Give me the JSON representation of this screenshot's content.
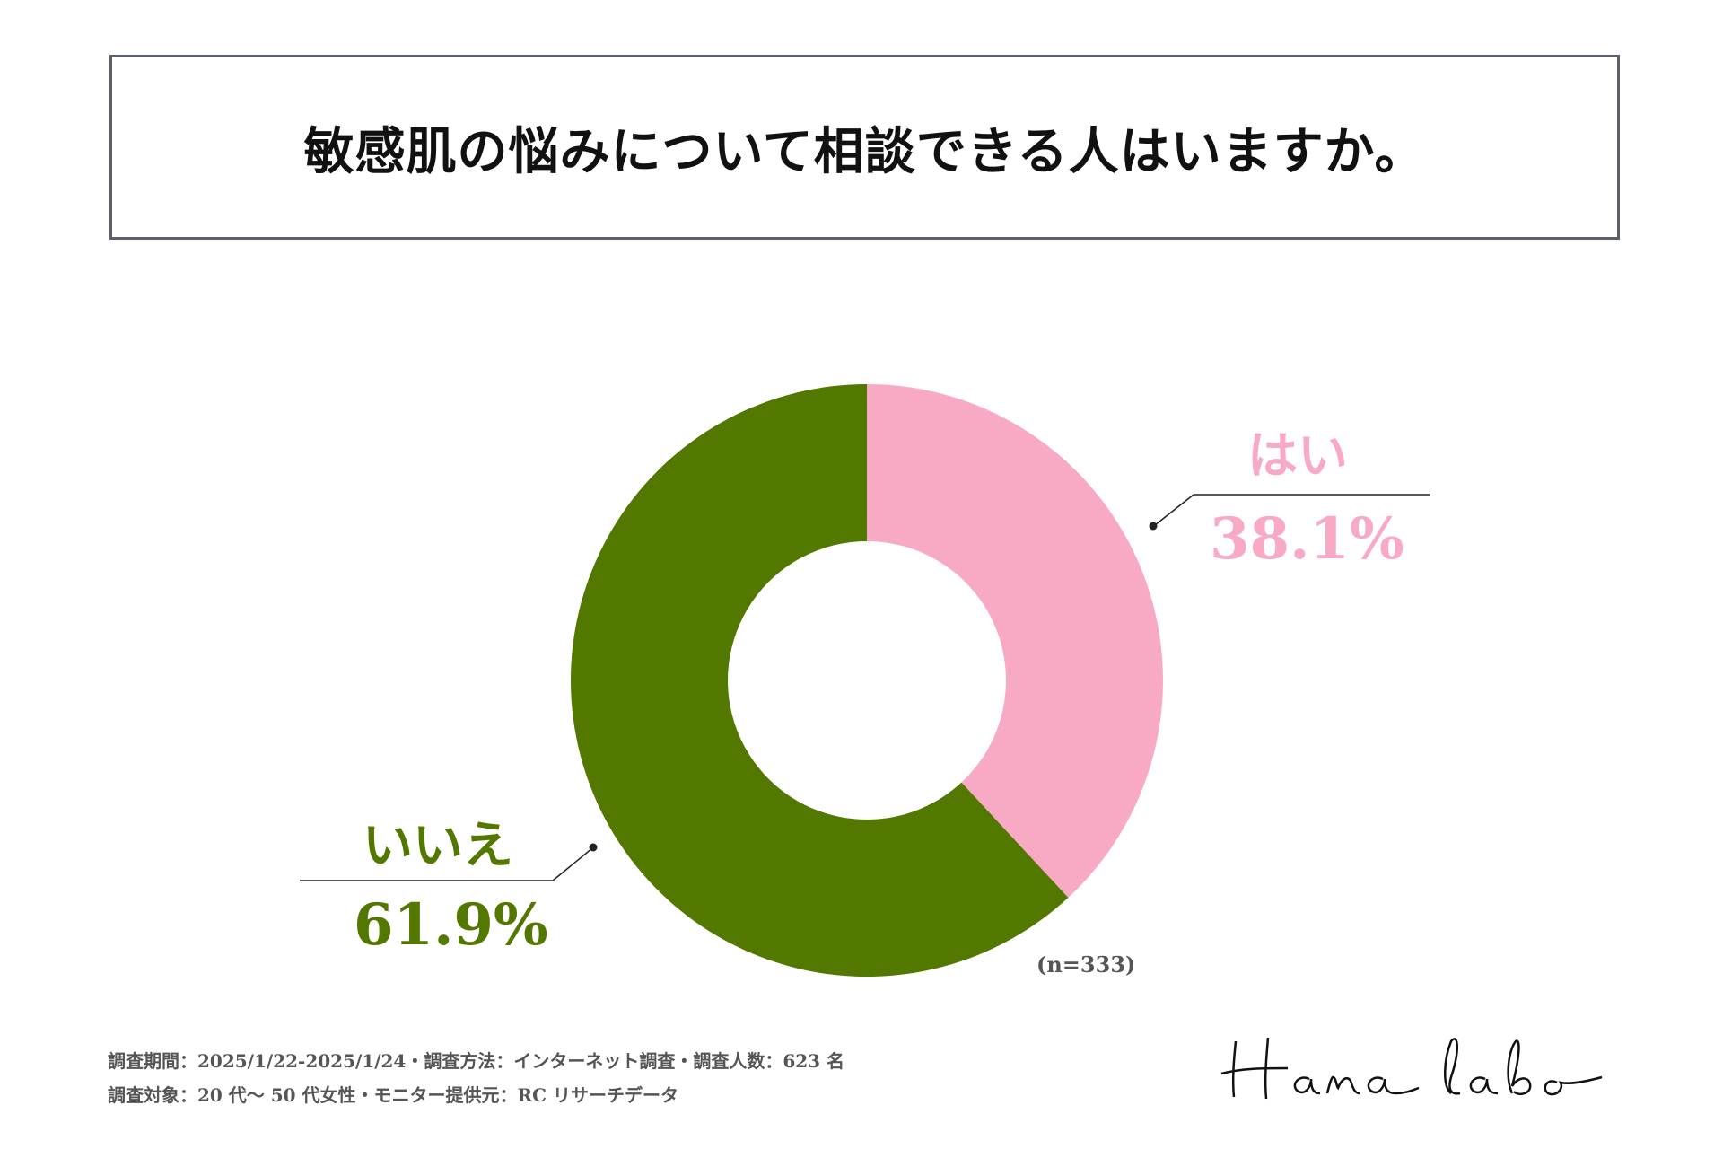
{
  "title": "敏感肌の悩みについて相談できる人はいますか。",
  "chart_data": {
    "type": "pie",
    "title": "敏感肌の悩みについて相談できる人はいますか。",
    "categories": [
      "はい",
      "いいえ"
    ],
    "values": [
      38.1,
      61.9
    ],
    "value_labels": [
      "38.1%",
      "61.9%"
    ],
    "colors": [
      "#f8a9c3",
      "#527800"
    ],
    "style": "donut",
    "legend": "callout-labels",
    "sample_size": "(n=333)"
  },
  "footer": {
    "line1": "調査期間：2025/1/22-2025/1/24・調査方法：インターネット調査・調査人数：623 名",
    "line2": "調査対象：20 代〜 50 代女性・モニター提供元：RC リサーチデータ"
  },
  "logo": {
    "text": "Hana labo"
  }
}
